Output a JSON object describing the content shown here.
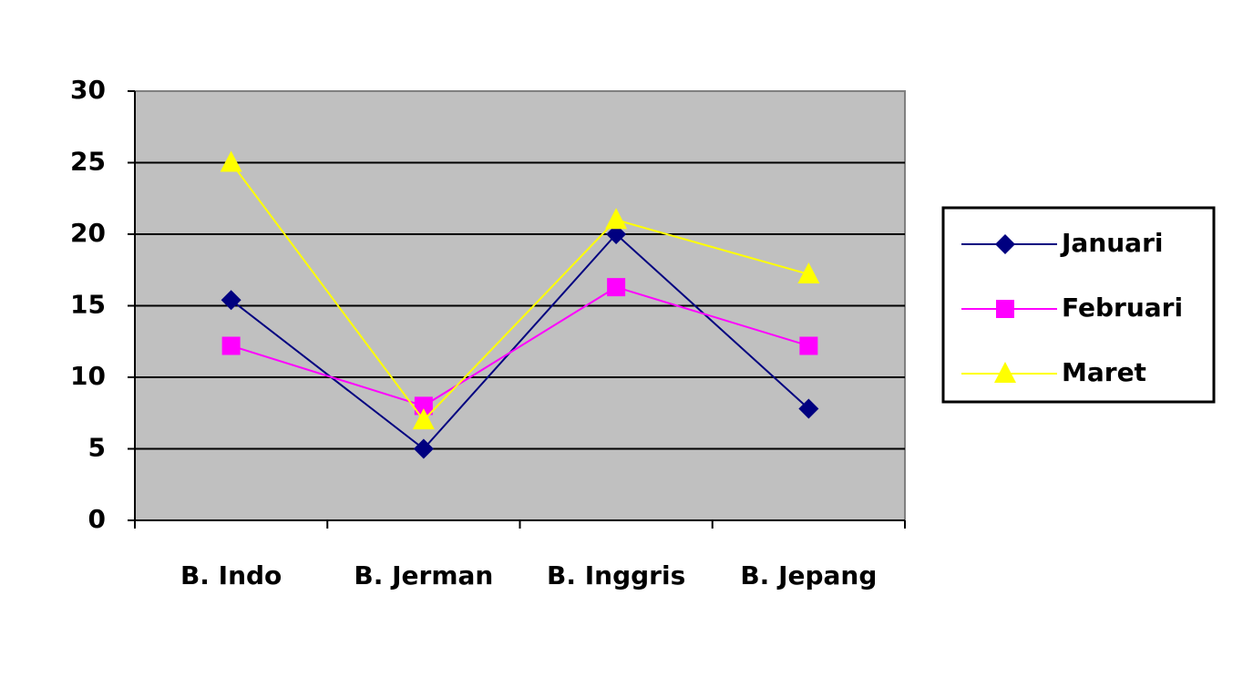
{
  "chart_data": {
    "type": "line",
    "categories": [
      "B. Indo",
      "B. Jerman",
      "B. Inggris",
      "B. Jepang"
    ],
    "series": [
      {
        "name": "Januari",
        "color": "#000080",
        "marker": "diamond",
        "values": [
          15.4,
          5,
          20,
          7.8
        ]
      },
      {
        "name": "Februari",
        "color": "#ff00ff",
        "marker": "square",
        "values": [
          12.2,
          8,
          16.3,
          12.2
        ]
      },
      {
        "name": "Maret",
        "color": "#ffff00",
        "marker": "triangle",
        "values": [
          25,
          7,
          21,
          17.2
        ]
      }
    ],
    "ylim": [
      0,
      30
    ],
    "yticks": [
      0,
      5,
      10,
      15,
      20,
      25,
      30
    ],
    "grid": true,
    "legend": "right",
    "plot_background": "#c0c0c0"
  }
}
